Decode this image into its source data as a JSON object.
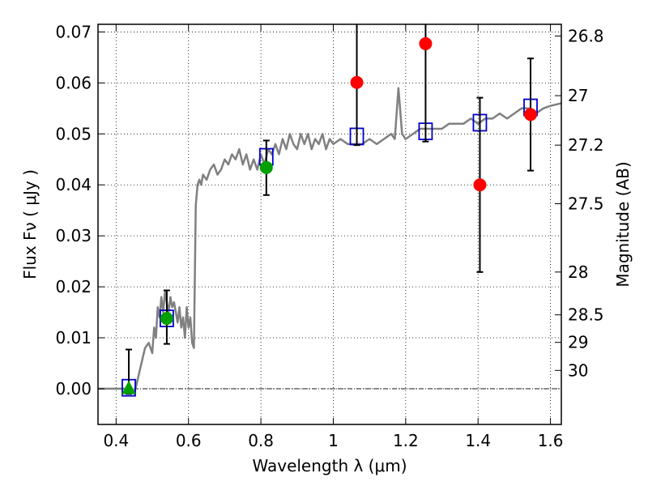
{
  "chart_data": {
    "type": "scatter",
    "xlabel": "Wavelength  λ (μm)",
    "ylabel": "Flux  Fν  ( μJy )",
    "y2label": "Magnitude (AB)",
    "xlim": [
      0.35,
      1.63
    ],
    "ylim": [
      -0.007,
      0.0715
    ],
    "grid": true,
    "x_ticks": [
      {
        "v": 0.4,
        "label": "0.4"
      },
      {
        "v": 0.6,
        "label": "0.6"
      },
      {
        "v": 0.8,
        "label": "0.8"
      },
      {
        "v": 1.0,
        "label": "1"
      },
      {
        "v": 1.2,
        "label": "1.2"
      },
      {
        "v": 1.4,
        "label": "1.4"
      },
      {
        "v": 1.6,
        "label": "1.6"
      }
    ],
    "y_ticks": [
      {
        "v": 0.0,
        "label": "0.00"
      },
      {
        "v": 0.01,
        "label": "0.01"
      },
      {
        "v": 0.02,
        "label": "0.02"
      },
      {
        "v": 0.03,
        "label": "0.03"
      },
      {
        "v": 0.04,
        "label": "0.04"
      },
      {
        "v": 0.05,
        "label": "0.05"
      },
      {
        "v": 0.06,
        "label": "0.06"
      },
      {
        "v": 0.07,
        "label": "0.07"
      }
    ],
    "mag_ticks": [
      {
        "flux": 0.0692,
        "label": "26.8"
      },
      {
        "flux": 0.0575,
        "label": "27"
      },
      {
        "flux": 0.0478,
        "label": "27.2"
      },
      {
        "flux": 0.0363,
        "label": "27.5"
      },
      {
        "flux": 0.0229,
        "label": "28"
      },
      {
        "flux": 0.0145,
        "label": "28.5"
      },
      {
        "flux": 0.0091,
        "label": "29"
      },
      {
        "flux": 0.0036,
        "label": "30"
      }
    ],
    "colors": {
      "model": "#808080",
      "model_flux": "#0000cc",
      "green": "#00a000",
      "red": "#ff0000",
      "errorbar": "#000000"
    },
    "series": [
      {
        "kind": "line",
        "x": [
          0.35,
          0.4,
          0.44,
          0.45,
          0.46,
          0.47,
          0.48,
          0.49,
          0.5,
          0.505,
          0.51,
          0.515,
          0.52,
          0.525,
          0.53,
          0.535,
          0.54,
          0.545,
          0.55,
          0.555,
          0.56,
          0.565,
          0.57,
          0.575,
          0.58,
          0.585,
          0.59,
          0.595,
          0.6,
          0.605,
          0.61,
          0.615,
          0.62,
          0.625,
          0.63,
          0.635,
          0.64,
          0.65,
          0.66,
          0.67,
          0.68,
          0.69,
          0.7,
          0.71,
          0.72,
          0.73,
          0.74,
          0.75,
          0.76,
          0.77,
          0.78,
          0.79,
          0.8,
          0.81,
          0.82,
          0.83,
          0.84,
          0.85,
          0.86,
          0.87,
          0.88,
          0.89,
          0.9,
          0.91,
          0.92,
          0.93,
          0.94,
          0.95,
          0.96,
          0.97,
          0.98,
          0.99,
          1.0,
          1.02,
          1.04,
          1.06,
          1.08,
          1.1,
          1.12,
          1.14,
          1.16,
          1.17,
          1.18,
          1.19,
          1.2,
          1.22,
          1.24,
          1.26,
          1.28,
          1.3,
          1.32,
          1.34,
          1.36,
          1.38,
          1.4,
          1.42,
          1.44,
          1.46,
          1.48,
          1.5,
          1.52,
          1.54,
          1.56,
          1.58,
          1.6,
          1.63
        ],
        "y": [
          0.0,
          0.0,
          0.0,
          -0.001,
          0.002,
          0.005,
          0.008,
          0.009,
          0.007,
          0.012,
          0.01,
          0.016,
          0.014,
          0.018,
          0.015,
          0.019,
          0.017,
          0.015,
          0.018,
          0.016,
          0.017,
          0.015,
          0.013,
          0.016,
          0.012,
          0.014,
          0.01,
          0.016,
          0.012,
          0.014,
          0.009,
          0.008,
          0.036,
          0.04,
          0.041,
          0.04,
          0.042,
          0.041,
          0.043,
          0.044,
          0.042,
          0.043,
          0.045,
          0.044,
          0.046,
          0.045,
          0.047,
          0.044,
          0.046,
          0.043,
          0.045,
          0.043,
          0.046,
          0.044,
          0.047,
          0.046,
          0.048,
          0.046,
          0.049,
          0.047,
          0.05,
          0.048,
          0.047,
          0.05,
          0.048,
          0.05,
          0.047,
          0.049,
          0.048,
          0.05,
          0.047,
          0.049,
          0.048,
          0.049,
          0.048,
          0.048,
          0.048,
          0.049,
          0.048,
          0.049,
          0.05,
          0.049,
          0.059,
          0.05,
          0.049,
          0.05,
          0.051,
          0.051,
          0.051,
          0.051,
          0.052,
          0.052,
          0.052,
          0.053,
          0.052,
          0.053,
          0.053,
          0.054,
          0.053,
          0.054,
          0.055,
          0.055,
          0.054,
          0.055,
          0.0555,
          0.056
        ]
      },
      {
        "kind": "squares",
        "x": [
          0.435,
          0.54,
          0.815,
          1.065,
          1.255,
          1.405,
          1.545
        ],
        "y": [
          0.0002,
          0.0138,
          0.0455,
          0.0495,
          0.0505,
          0.0522,
          0.0552
        ]
      },
      {
        "kind": "errorbar_points",
        "points": [
          {
            "x": 0.435,
            "y": 0.0,
            "lo": -0.001,
            "hi": 0.0077,
            "color": "green",
            "marker": "triangle"
          },
          {
            "x": 0.54,
            "y": 0.0138,
            "lo": 0.0088,
            "hi": 0.0193,
            "color": "green",
            "marker": "circle"
          },
          {
            "x": 0.815,
            "y": 0.0434,
            "lo": 0.038,
            "hi": 0.0487,
            "color": "green",
            "marker": "circle"
          },
          {
            "x": 1.065,
            "y": 0.0601,
            "lo": 0.0478,
            "hi": 0.072,
            "color": "red",
            "marker": "circle"
          },
          {
            "x": 1.255,
            "y": 0.0677,
            "lo": 0.0485,
            "hi": 0.072,
            "color": "red",
            "marker": "circle"
          },
          {
            "x": 1.405,
            "y": 0.04,
            "lo": 0.0229,
            "hi": 0.0571,
            "color": "red",
            "marker": "circle"
          },
          {
            "x": 1.545,
            "y": 0.0538,
            "lo": 0.0428,
            "hi": 0.0648,
            "color": "red",
            "marker": "circle"
          }
        ]
      }
    ]
  }
}
